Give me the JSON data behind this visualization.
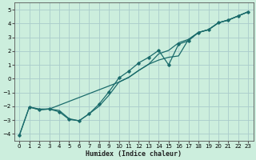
{
  "xlabel": "Humidex (Indice chaleur)",
  "background_color": "#cceedd",
  "grid_color": "#aacccc",
  "line_color": "#1a6b6b",
  "xlim": [
    -0.5,
    23.5
  ],
  "ylim": [
    -4.5,
    5.5
  ],
  "xticks": [
    0,
    1,
    2,
    3,
    4,
    5,
    6,
    7,
    8,
    9,
    10,
    11,
    12,
    13,
    14,
    15,
    16,
    17,
    18,
    19,
    20,
    21,
    22,
    23
  ],
  "yticks": [
    -4,
    -3,
    -2,
    -1,
    0,
    1,
    2,
    3,
    4,
    5
  ],
  "line_straight_x": [
    0,
    1,
    2,
    3,
    4,
    5,
    6,
    7,
    8,
    9,
    10,
    11,
    12,
    13,
    14,
    15,
    16,
    17,
    18,
    19,
    20,
    21,
    22,
    23
  ],
  "line_straight_y": [
    -4.1,
    -2.05,
    -2.2,
    -2.2,
    -2.3,
    -2.9,
    -3.05,
    -2.55,
    -2.0,
    -1.2,
    -0.25,
    0.1,
    0.6,
    1.05,
    1.35,
    1.55,
    1.65,
    2.85,
    3.35,
    3.55,
    4.05,
    4.25,
    4.55,
    4.85
  ],
  "line_wavy_x": [
    0,
    1,
    2,
    3,
    4,
    5,
    6,
    7,
    8,
    9,
    10,
    11,
    12,
    13,
    14,
    15,
    16,
    17,
    18,
    19,
    20,
    21,
    22,
    23
  ],
  "line_wavy_y": [
    -4.1,
    -2.05,
    -2.25,
    -2.2,
    -2.4,
    -2.95,
    -3.05,
    -2.55,
    -1.85,
    -0.95,
    0.05,
    0.55,
    1.15,
    1.55,
    2.05,
    1.0,
    2.5,
    2.75,
    3.35,
    3.55,
    4.05,
    4.25,
    4.55,
    4.85
  ],
  "line_upper_x": [
    1,
    2,
    3,
    10,
    11,
    12,
    13,
    14,
    15,
    16,
    17,
    18,
    19,
    20,
    21,
    22,
    23
  ],
  "line_upper_y": [
    -2.05,
    -2.25,
    -2.2,
    -0.25,
    0.1,
    0.6,
    1.05,
    1.8,
    2.05,
    2.6,
    2.85,
    3.35,
    3.55,
    4.05,
    4.25,
    4.55,
    4.85
  ]
}
